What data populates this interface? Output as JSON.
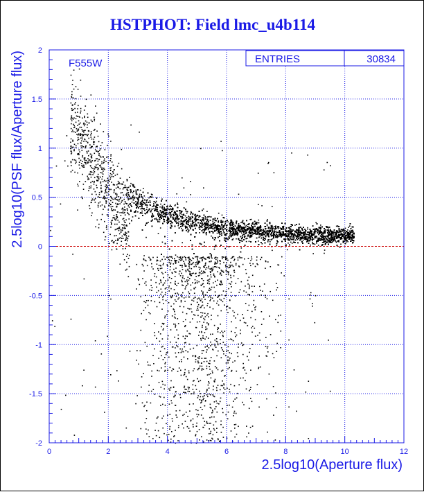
{
  "chart_data": {
    "type": "scatter",
    "title": "HSTPHOT: Field lmc_u4b114",
    "xlabel": "2.5log10(Aperture flux)",
    "ylabel": "2.5log10(PSF flux/Aperture flux)",
    "xlim": [
      0,
      12
    ],
    "ylim": [
      -2,
      2
    ],
    "x_ticks": [
      "0",
      "2",
      "4",
      "6",
      "8",
      "10",
      "12"
    ],
    "y_ticks": [
      "-2",
      "-1.5",
      "-1",
      "-0.5",
      "0",
      "0.5",
      "1",
      "1.5",
      "2"
    ],
    "grid": true,
    "filter_label": "F555W",
    "stats": {
      "entries_label": "ENTRIES",
      "entries_value": "30834"
    },
    "reference_line": {
      "y": 0,
      "color": "#cc0000"
    },
    "axis_color": "#1a1ae6",
    "point_color": "#000000",
    "points_note": "dense scatter of 30834 points; main locus rises from about 0.1 at x=10 to about 0.5 at x=2.8, sparse tail to negative values"
  }
}
